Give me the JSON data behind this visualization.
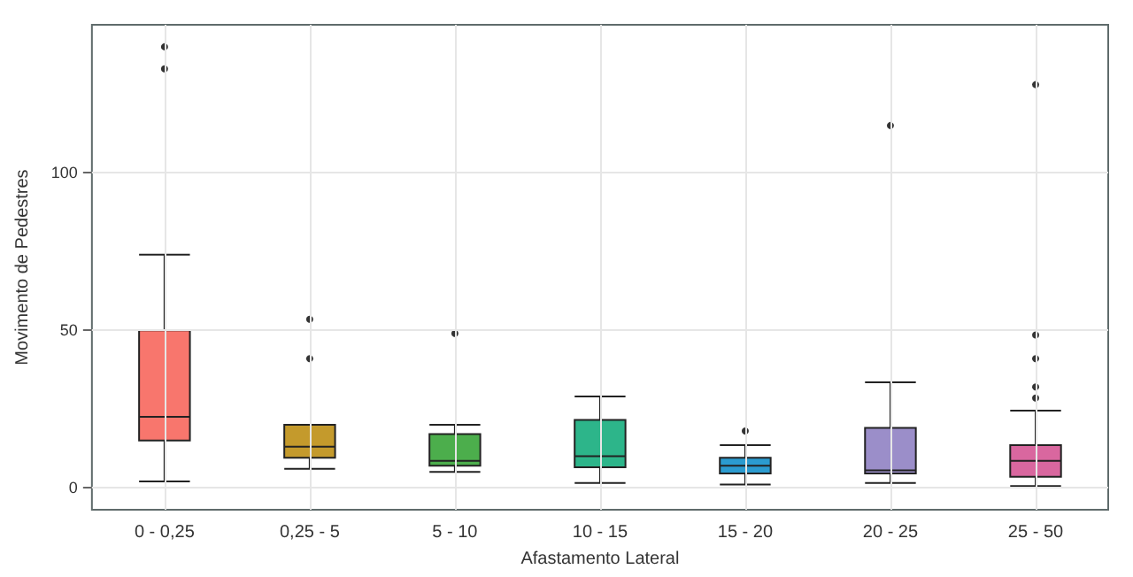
{
  "chart_data": {
    "type": "box",
    "xlabel": "Afastamento Lateral",
    "ylabel": "Movimento de Pedestres",
    "categories": [
      "0 - 0,25",
      "0,25 - 5",
      "5 - 10",
      "10 - 15",
      "15 - 20",
      "20 - 25",
      "25 - 50"
    ],
    "boxes": [
      {
        "low": 2,
        "q1": 15,
        "median": 22.5,
        "q3": 50,
        "high": 74,
        "outliers": [
          133,
          140
        ]
      },
      {
        "low": 6,
        "q1": 9.5,
        "median": 13,
        "q3": 20,
        "high": 20,
        "outliers": [
          41,
          53.5
        ]
      },
      {
        "low": 5,
        "q1": 7,
        "median": 8.5,
        "q3": 17,
        "high": 20,
        "outliers": [
          49
        ]
      },
      {
        "low": 1.5,
        "q1": 6.5,
        "median": 10,
        "q3": 21.5,
        "high": 29
      },
      {
        "low": 1,
        "q1": 4.5,
        "median": 7,
        "q3": 9.5,
        "high": 13.5,
        "outliers": [
          18
        ]
      },
      {
        "low": 1.5,
        "q1": 4.5,
        "median": 5.5,
        "q3": 19,
        "high": 33.5,
        "outliers": [
          115
        ]
      },
      {
        "low": 0.5,
        "q1": 3.5,
        "median": 8.5,
        "q3": 13.5,
        "high": 24.5,
        "outliers": [
          28.5,
          32,
          41,
          48.5,
          128
        ]
      }
    ],
    "colors": [
      "#f8766d",
      "#c49a2c",
      "#4cae4c",
      "#2db58a",
      "#2b9bd0",
      "#9b8ec9",
      "#d9679f"
    ],
    "ylim": [
      -7,
      147
    ],
    "yticks": [
      0,
      50,
      100
    ],
    "grid": true
  }
}
